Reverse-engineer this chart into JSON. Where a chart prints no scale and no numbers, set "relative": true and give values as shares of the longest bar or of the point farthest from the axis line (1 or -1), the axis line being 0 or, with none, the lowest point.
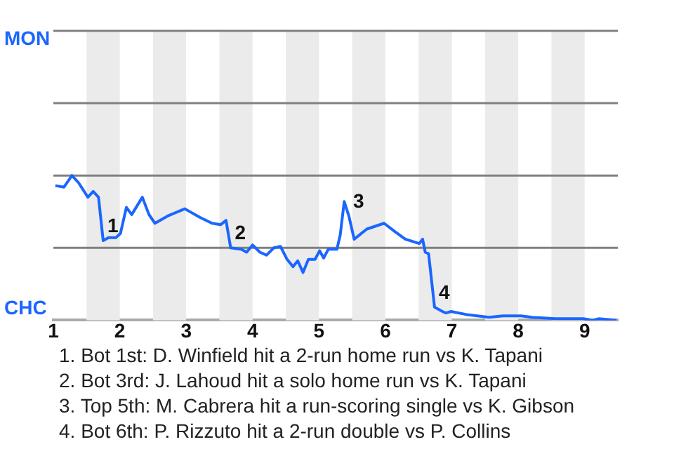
{
  "chart_data": {
    "type": "line",
    "relative": true,
    "x": [
      1.03,
      1.16,
      1.28,
      1.38,
      1.52,
      1.6,
      1.68,
      1.75,
      1.83,
      1.94,
      2.01,
      2.1,
      2.18,
      2.34,
      2.44,
      2.53,
      2.72,
      2.98,
      3.21,
      3.39,
      3.52,
      3.6,
      3.67,
      3.83,
      3.91,
      4.0,
      4.11,
      4.21,
      4.32,
      4.42,
      4.52,
      4.61,
      4.68,
      4.76,
      4.84,
      4.94,
      5.01,
      5.07,
      5.14,
      5.27,
      5.32,
      5.38,
      5.45,
      5.53,
      5.72,
      5.98,
      6.15,
      6.3,
      6.51,
      6.56,
      6.6,
      6.65,
      6.74,
      6.86,
      6.91,
      6.99,
      7.21,
      7.56,
      7.77,
      8.04,
      8.21,
      8.56,
      8.98,
      9.12,
      9.21,
      9.48
    ],
    "series": [
      {
        "color": "#1a66ff",
        "values": [
          0.93,
          0.92,
          1,
          0.95,
          0.85,
          0.89,
          0.85,
          0.55,
          0.57,
          0.57,
          0.6,
          0.78,
          0.73,
          0.85,
          0.73,
          0.67,
          0.72,
          0.77,
          0.71,
          0.67,
          0.66,
          0.69,
          0.5,
          0.49,
          0.47,
          0.52,
          0.47,
          0.45,
          0.5,
          0.51,
          0.42,
          0.37,
          0.41,
          0.33,
          0.42,
          0.42,
          0.48,
          0.43,
          0.49,
          0.49,
          0.59,
          0.82,
          0.72,
          0.56,
          0.63,
          0.67,
          0.61,
          0.56,
          0.53,
          0.56,
          0.47,
          0.46,
          0.09,
          0.06,
          0.05,
          0.06,
          0.04,
          0.02,
          0.03,
          0.03,
          0.02,
          0.01,
          0.01,
          0,
          0.01,
          0
        ]
      }
    ],
    "xlim": [
      1,
      9.5
    ],
    "xticks": [
      1,
      2,
      3,
      4,
      5,
      6,
      7,
      8,
      9
    ],
    "ref_lines": [
      {
        "axis": "y",
        "value": 0.5,
        "color": "#808080"
      },
      {
        "axis": "y",
        "value": 1,
        "color": "#808080"
      },
      {
        "axis": "y",
        "value": 1.5,
        "color": "#808080"
      },
      {
        "axis": "y",
        "value": 2,
        "color": "#808080"
      }
    ],
    "marker": "none",
    "line_style": "solid",
    "bands": [
      {
        "axis": "x",
        "from": 1.5,
        "to": 2,
        "color": "#ebebeb"
      },
      {
        "axis": "x",
        "from": 2.5,
        "to": 3,
        "color": "#ebebeb"
      },
      {
        "axis": "x",
        "from": 3.5,
        "to": 4,
        "color": "#ebebeb"
      },
      {
        "axis": "x",
        "from": 4.5,
        "to": 5,
        "color": "#ebebeb"
      },
      {
        "axis": "x",
        "from": 5.5,
        "to": 6,
        "color": "#ebebeb"
      },
      {
        "axis": "x",
        "from": 6.5,
        "to": 7,
        "color": "#ebebeb"
      },
      {
        "axis": "x",
        "from": 7.5,
        "to": 8,
        "color": "#ebebeb"
      },
      {
        "axis": "x",
        "from": 8.5,
        "to": 9,
        "color": "#ebebeb"
      }
    ],
    "annotations": [
      "MON",
      "CHC",
      {
        "text": "1",
        "x": 1.75,
        "y": 0.55
      },
      {
        "text": "2",
        "x": 3.67,
        "y": 0.5
      },
      {
        "text": "3",
        "x": 5.45,
        "y": 0.72
      },
      {
        "text": "4",
        "x": 6.74,
        "y": 0.09
      },
      "1. Bot 1st: D. Winfield hit a 2-run home run vs K. Tapani",
      "2. Bot 3rd: J. Lahoud hit a solo home run vs K. Tapani",
      "3. Top 5th: M. Cabrera hit a run-scoring single vs K. Gibson",
      "4. Bot 6th: P. Rizzuto hit a 2-run double vs P. Collins"
    ]
  }
}
